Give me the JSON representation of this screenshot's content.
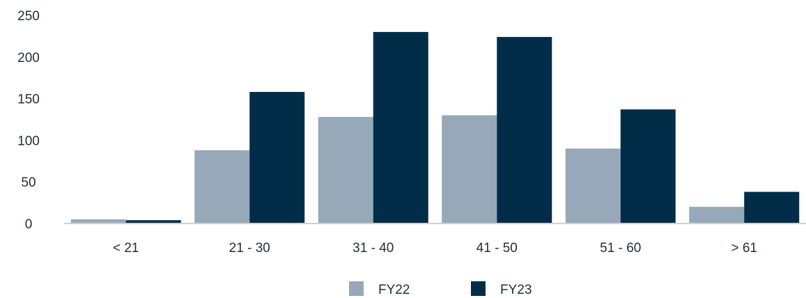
{
  "chart_data": {
    "type": "bar",
    "categories": [
      "< 21",
      "21 - 30",
      "31 - 40",
      "41 - 50",
      "51 - 60",
      "> 61"
    ],
    "series": [
      {
        "name": "FY22",
        "color": "#97a9b9",
        "values": [
          5,
          88,
          128,
          130,
          90,
          20
        ]
      },
      {
        "name": "FY23",
        "color": "#022d48",
        "values": [
          4,
          158,
          230,
          224,
          137,
          38
        ]
      }
    ],
    "title": "",
    "xlabel": "",
    "ylabel": "",
    "ylim": [
      0,
      250
    ],
    "yticks": [
      "0",
      "50",
      "100",
      "150",
      "200",
      "250"
    ],
    "grid": false,
    "legend_position": "bottom-center"
  }
}
